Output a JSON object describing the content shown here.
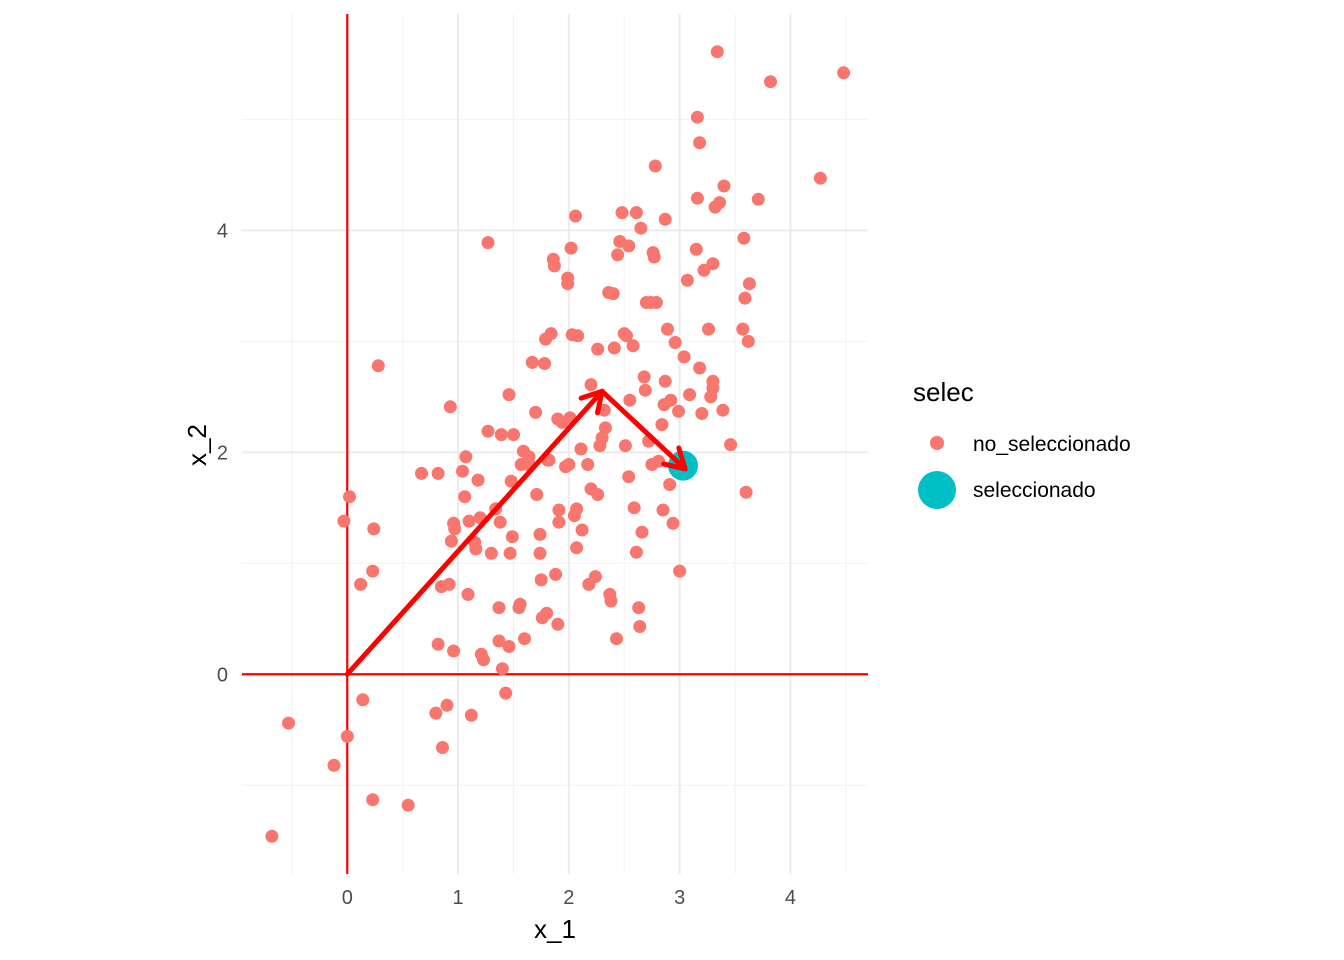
{
  "chart_data": {
    "type": "scatter",
    "title": "",
    "xlabel": "x_1",
    "ylabel": "x_2",
    "xlim": [
      -0.95,
      4.7
    ],
    "ylim": [
      -1.8,
      5.95
    ],
    "x_ticks": [
      0,
      1,
      2,
      3,
      4
    ],
    "y_ticks": [
      0,
      2,
      4
    ],
    "grid": true,
    "aspect": "equal",
    "legend": {
      "title": "selec",
      "placement": "right",
      "entries": [
        {
          "label": "no_seleccionado",
          "color": "#F8766D"
        },
        {
          "label": "seleccionado",
          "color": "#00BFC4"
        }
      ]
    },
    "reference_lines": {
      "x": 0,
      "y": 0,
      "color": "#FF0000"
    },
    "arrows": [
      {
        "from": [
          0,
          0
        ],
        "to": [
          2.3,
          2.55
        ],
        "color": "#FF0000"
      },
      {
        "from": [
          2.3,
          2.55
        ],
        "to": [
          3.05,
          1.85
        ],
        "color": "#FF0000"
      }
    ],
    "series": [
      {
        "name": "no_seleccionado",
        "color": "#F8766D",
        "points": [
          [
            -0.68,
            -1.46
          ],
          [
            -0.53,
            -0.44
          ],
          [
            -0.12,
            -0.82
          ],
          [
            0,
            -0.56
          ],
          [
            0.02,
            1.6
          ],
          [
            -0.03,
            1.38
          ],
          [
            0.14,
            -0.23
          ],
          [
            0.12,
            0.81
          ],
          [
            0.23,
            -1.13
          ],
          [
            0.23,
            0.93
          ],
          [
            0.24,
            1.31
          ],
          [
            0.28,
            2.78
          ],
          [
            0.55,
            -1.18
          ],
          [
            0.67,
            1.81
          ],
          [
            0.8,
            -0.35
          ],
          [
            0.82,
            0.27
          ],
          [
            0.82,
            1.81
          ],
          [
            0.86,
            -0.66
          ],
          [
            0.85,
            0.79
          ],
          [
            0.9,
            -0.28
          ],
          [
            0.92,
            0.81
          ],
          [
            0.93,
            2.41
          ],
          [
            0.96,
            0.21
          ],
          [
            0.94,
            1.2
          ],
          [
            0.96,
            1.36
          ],
          [
            0.97,
            1.31
          ],
          [
            1.04,
            1.83
          ],
          [
            1.06,
            1.6
          ],
          [
            1.07,
            1.96
          ],
          [
            1.09,
            0.72
          ],
          [
            1.1,
            1.38
          ],
          [
            1.12,
            -0.37
          ],
          [
            1.15,
            1.19
          ],
          [
            1.16,
            1.13
          ],
          [
            1.18,
            1.75
          ],
          [
            1.2,
            1.41
          ],
          [
            1.21,
            0.18
          ],
          [
            1.23,
            0.13
          ],
          [
            1.27,
            2.19
          ],
          [
            1.27,
            3.89
          ],
          [
            1.3,
            1.09
          ],
          [
            1.34,
            1.49
          ],
          [
            1.37,
            0.3
          ],
          [
            1.38,
            1.37
          ],
          [
            1.37,
            0.6
          ],
          [
            1.39,
            2.16
          ],
          [
            1.4,
            0.05
          ],
          [
            1.43,
            -0.17
          ],
          [
            1.46,
            0.25
          ],
          [
            1.47,
            1.09
          ],
          [
            1.48,
            1.74
          ],
          [
            1.49,
            1.24
          ],
          [
            1.5,
            2.16
          ],
          [
            1.46,
            2.52
          ],
          [
            1.55,
            0.6
          ],
          [
            1.56,
            0.63
          ],
          [
            1.57,
            1.89
          ],
          [
            1.59,
            2.01
          ],
          [
            1.6,
            0.32
          ],
          [
            1.64,
            1.96
          ],
          [
            1.65,
            1.88
          ],
          [
            1.67,
            2.81
          ],
          [
            1.7,
            2.36
          ],
          [
            1.71,
            1.62
          ],
          [
            1.74,
            1.26
          ],
          [
            1.74,
            1.09
          ],
          [
            1.75,
            0.85
          ],
          [
            1.76,
            0.51
          ],
          [
            1.78,
            2.8
          ],
          [
            1.79,
            3.02
          ],
          [
            1.8,
            0.55
          ],
          [
            1.82,
            1.93
          ],
          [
            1.81,
            1.93
          ],
          [
            1.84,
            3.07
          ],
          [
            1.86,
            3.74
          ],
          [
            1.87,
            3.68
          ],
          [
            1.88,
            0.9
          ],
          [
            1.9,
            2.3
          ],
          [
            1.9,
            0.45
          ],
          [
            1.91,
            1.48
          ],
          [
            1.91,
            1.37
          ],
          [
            1.94,
            2.27
          ],
          [
            1.97,
            1.87
          ],
          [
            1.99,
            3.57
          ],
          [
            1.99,
            3.52
          ],
          [
            2.0,
            1.89
          ],
          [
            2.01,
            2.31
          ],
          [
            2.02,
            3.84
          ],
          [
            2.03,
            3.06
          ],
          [
            2.06,
            4.13
          ],
          [
            2.05,
            1.43
          ],
          [
            2.07,
            1.49
          ],
          [
            2.07,
            1.14
          ],
          [
            2.08,
            3.05
          ],
          [
            2.11,
            2.03
          ],
          [
            2.12,
            1.3
          ],
          [
            2.17,
            1.89
          ],
          [
            2.18,
            0.81
          ],
          [
            2.2,
            2.61
          ],
          [
            2.2,
            1.67
          ],
          [
            2.24,
            0.88
          ],
          [
            2.26,
            1.62
          ],
          [
            2.26,
            2.93
          ],
          [
            2.28,
            2.06
          ],
          [
            2.3,
            2.13
          ],
          [
            2.32,
            2.38
          ],
          [
            2.33,
            2.22
          ],
          [
            2.36,
            3.44
          ],
          [
            2.37,
            0.72
          ],
          [
            2.38,
            0.66
          ],
          [
            2.4,
            3.43
          ],
          [
            2.41,
            2.94
          ],
          [
            2.43,
            0.32
          ],
          [
            2.44,
            3.78
          ],
          [
            2.46,
            3.9
          ],
          [
            2.48,
            4.16
          ],
          [
            2.5,
            3.07
          ],
          [
            2.51,
            2.06
          ],
          [
            2.52,
            3.05
          ],
          [
            2.54,
            3.86
          ],
          [
            2.54,
            1.78
          ],
          [
            2.55,
            2.47
          ],
          [
            2.58,
            2.96
          ],
          [
            2.59,
            1.5
          ],
          [
            2.61,
            1.1
          ],
          [
            2.61,
            4.16
          ],
          [
            2.63,
            0.6
          ],
          [
            2.64,
            0.43
          ],
          [
            2.65,
            4.02
          ],
          [
            2.66,
            1.28
          ],
          [
            2.68,
            2.68
          ],
          [
            2.69,
            2.56
          ],
          [
            2.7,
            3.35
          ],
          [
            2.72,
            2.1
          ],
          [
            2.74,
            3.35
          ],
          [
            2.75,
            1.89
          ],
          [
            2.76,
            3.8
          ],
          [
            2.77,
            3.76
          ],
          [
            2.78,
            4.58
          ],
          [
            2.79,
            3.35
          ],
          [
            2.81,
            1.92
          ],
          [
            2.84,
            2.25
          ],
          [
            2.85,
            1.48
          ],
          [
            2.86,
            2.43
          ],
          [
            2.87,
            4.1
          ],
          [
            2.87,
            2.64
          ],
          [
            2.89,
            3.11
          ],
          [
            2.91,
            1.71
          ],
          [
            2.92,
            2.47
          ],
          [
            2.94,
            1.36
          ],
          [
            2.96,
            2.99
          ],
          [
            2.99,
            2.37
          ],
          [
            3.0,
            0.93
          ],
          [
            3.04,
            2.86
          ],
          [
            3.07,
            3.55
          ],
          [
            3.09,
            2.52
          ],
          [
            3.15,
            3.83
          ],
          [
            3.16,
            4.29
          ],
          [
            3.16,
            5.02
          ],
          [
            3.18,
            4.79
          ],
          [
            3.18,
            2.76
          ],
          [
            3.2,
            2.35
          ],
          [
            3.22,
            3.64
          ],
          [
            3.26,
            3.11
          ],
          [
            3.28,
            2.5
          ],
          [
            3.3,
            3.7
          ],
          [
            3.3,
            2.64
          ],
          [
            3.3,
            2.58
          ],
          [
            3.32,
            4.21
          ],
          [
            3.34,
            5.61
          ],
          [
            3.36,
            4.25
          ],
          [
            3.39,
            2.38
          ],
          [
            3.4,
            4.4
          ],
          [
            3.46,
            2.07
          ],
          [
            3.57,
            3.11
          ],
          [
            3.58,
            3.93
          ],
          [
            3.59,
            3.39
          ],
          [
            3.6,
            1.64
          ],
          [
            3.62,
            3.0
          ],
          [
            3.63,
            3.52
          ],
          [
            3.71,
            4.28
          ],
          [
            3.82,
            5.34
          ],
          [
            4.27,
            4.47
          ],
          [
            4.48,
            5.42
          ]
        ]
      },
      {
        "name": "seleccionado",
        "color": "#00BFC4",
        "points": [
          [
            3.03,
            1.88
          ]
        ]
      }
    ]
  }
}
